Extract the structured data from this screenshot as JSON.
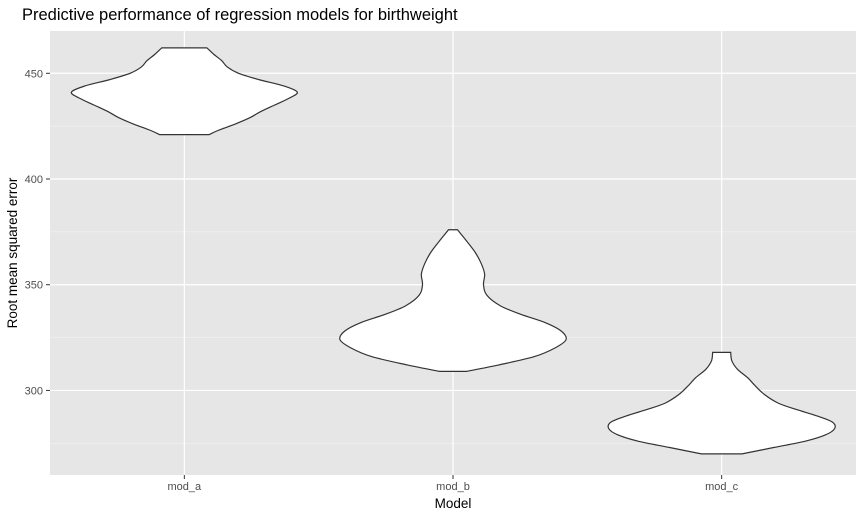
{
  "chart_data": {
    "type": "violin",
    "title": "Predictive performance of regression models for birthweight",
    "xlabel": "Model",
    "ylabel": "Root mean squared error",
    "categories": [
      "mod_a",
      "mod_b",
      "mod_c"
    ],
    "ylim": [
      260,
      470
    ],
    "yticks": [
      300,
      350,
      400,
      450
    ],
    "grid": true,
    "series": [
      {
        "category": "mod_a",
        "min": 421,
        "max": 462,
        "profile": [
          [
            421,
            0.22
          ],
          [
            423,
            0.3
          ],
          [
            426,
            0.45
          ],
          [
            429,
            0.58
          ],
          [
            432,
            0.68
          ],
          [
            435,
            0.8
          ],
          [
            438,
            0.92
          ],
          [
            441,
            1.0
          ],
          [
            444,
            0.88
          ],
          [
            447,
            0.66
          ],
          [
            450,
            0.48
          ],
          [
            453,
            0.38
          ],
          [
            456,
            0.33
          ],
          [
            459,
            0.26
          ],
          [
            462,
            0.2
          ]
        ]
      },
      {
        "category": "mod_b",
        "min": 309,
        "max": 376,
        "profile": [
          [
            309,
            0.12
          ],
          [
            312,
            0.4
          ],
          [
            316,
            0.72
          ],
          [
            320,
            0.9
          ],
          [
            324,
            1.0
          ],
          [
            328,
            0.96
          ],
          [
            332,
            0.82
          ],
          [
            336,
            0.6
          ],
          [
            340,
            0.42
          ],
          [
            345,
            0.3
          ],
          [
            350,
            0.27
          ],
          [
            355,
            0.28
          ],
          [
            360,
            0.25
          ],
          [
            365,
            0.2
          ],
          [
            370,
            0.13
          ],
          [
            374,
            0.07
          ],
          [
            376,
            0.04
          ]
        ]
      },
      {
        "category": "mod_c",
        "min": 270,
        "max": 318,
        "profile": [
          [
            270,
            0.18
          ],
          [
            273,
            0.46
          ],
          [
            276,
            0.74
          ],
          [
            279,
            0.92
          ],
          [
            282,
            1.0
          ],
          [
            285,
            0.98
          ],
          [
            288,
            0.84
          ],
          [
            291,
            0.66
          ],
          [
            294,
            0.5
          ],
          [
            298,
            0.38
          ],
          [
            302,
            0.3
          ],
          [
            306,
            0.23
          ],
          [
            310,
            0.14
          ],
          [
            314,
            0.09
          ],
          [
            318,
            0.08
          ]
        ]
      }
    ]
  }
}
